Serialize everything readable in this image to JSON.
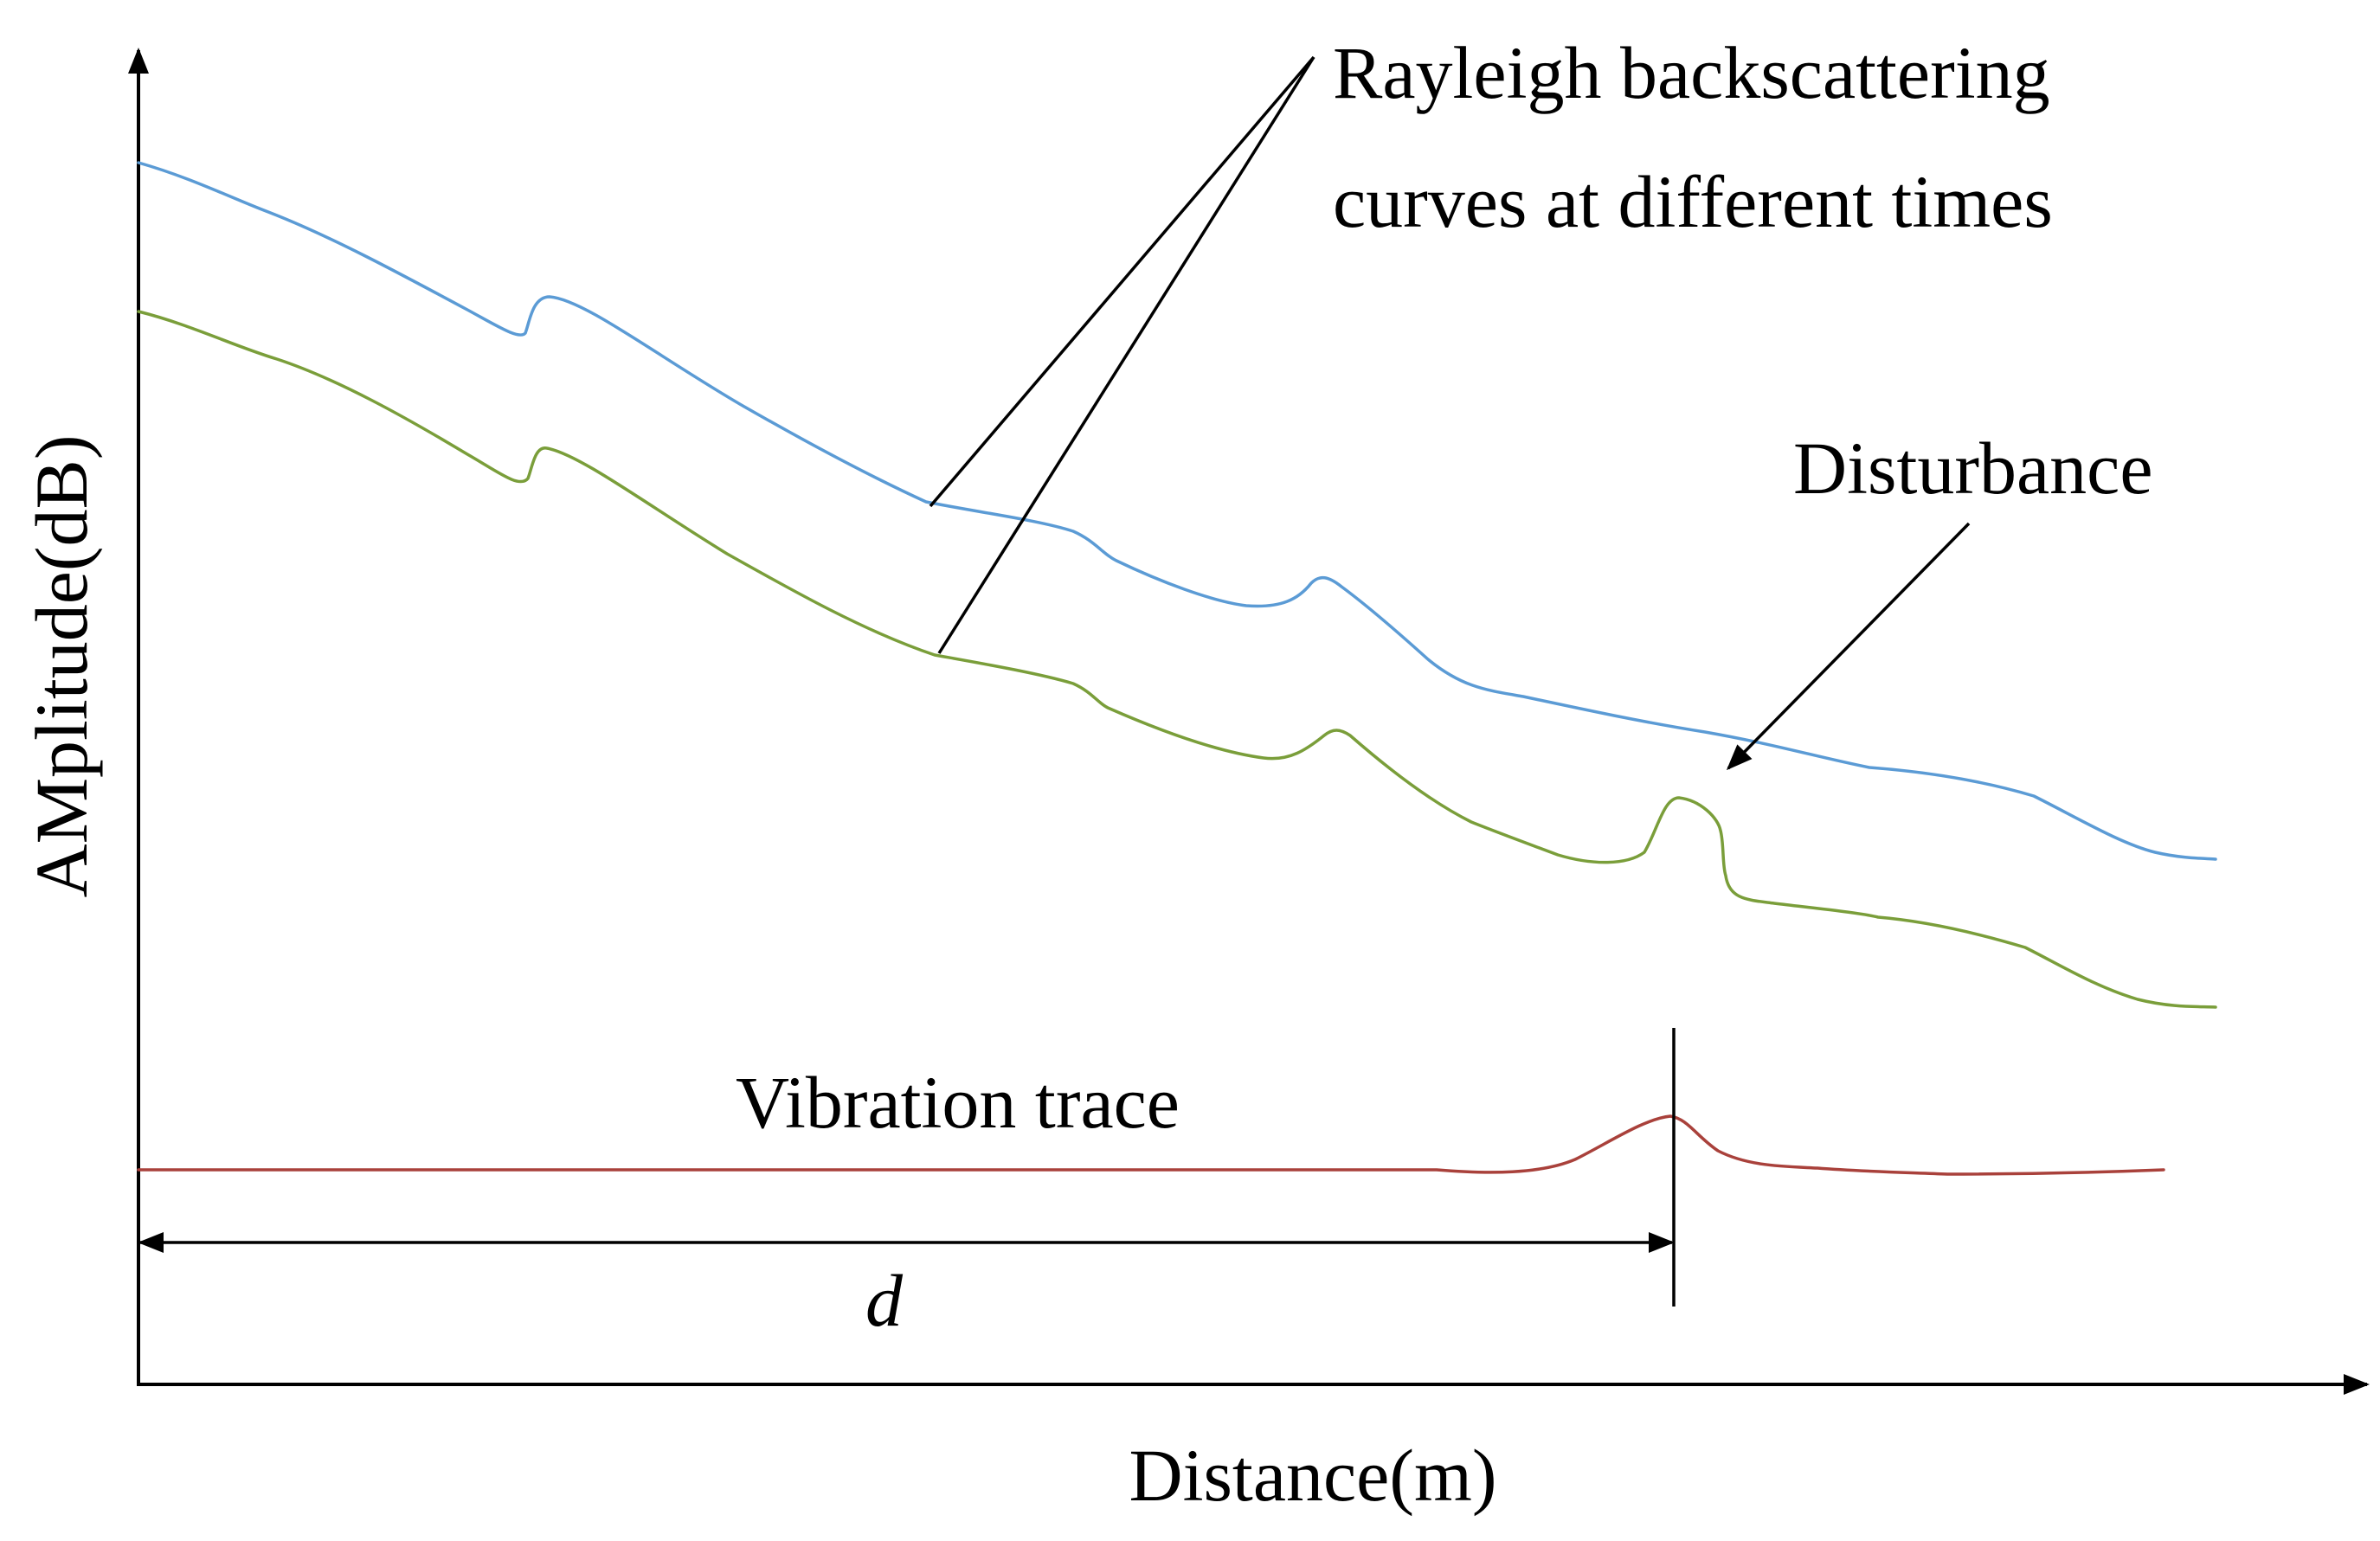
{
  "figure": {
    "y_axis_label": "AMplitude(dB)",
    "x_axis_label": "Distance(m)",
    "annotation_rayleigh_line1": "Rayleigh backscattering",
    "annotation_rayleigh_line2": "curves at different times",
    "annotation_disturbance": "Disturbance",
    "annotation_vibration": "Vibration trace",
    "distance_symbol": "d"
  },
  "colors": {
    "curve_time_1": "#5B9BD5",
    "curve_time_2": "#7A9E3A",
    "vibration_trace": "#A9413B",
    "axes": "#000000"
  }
}
